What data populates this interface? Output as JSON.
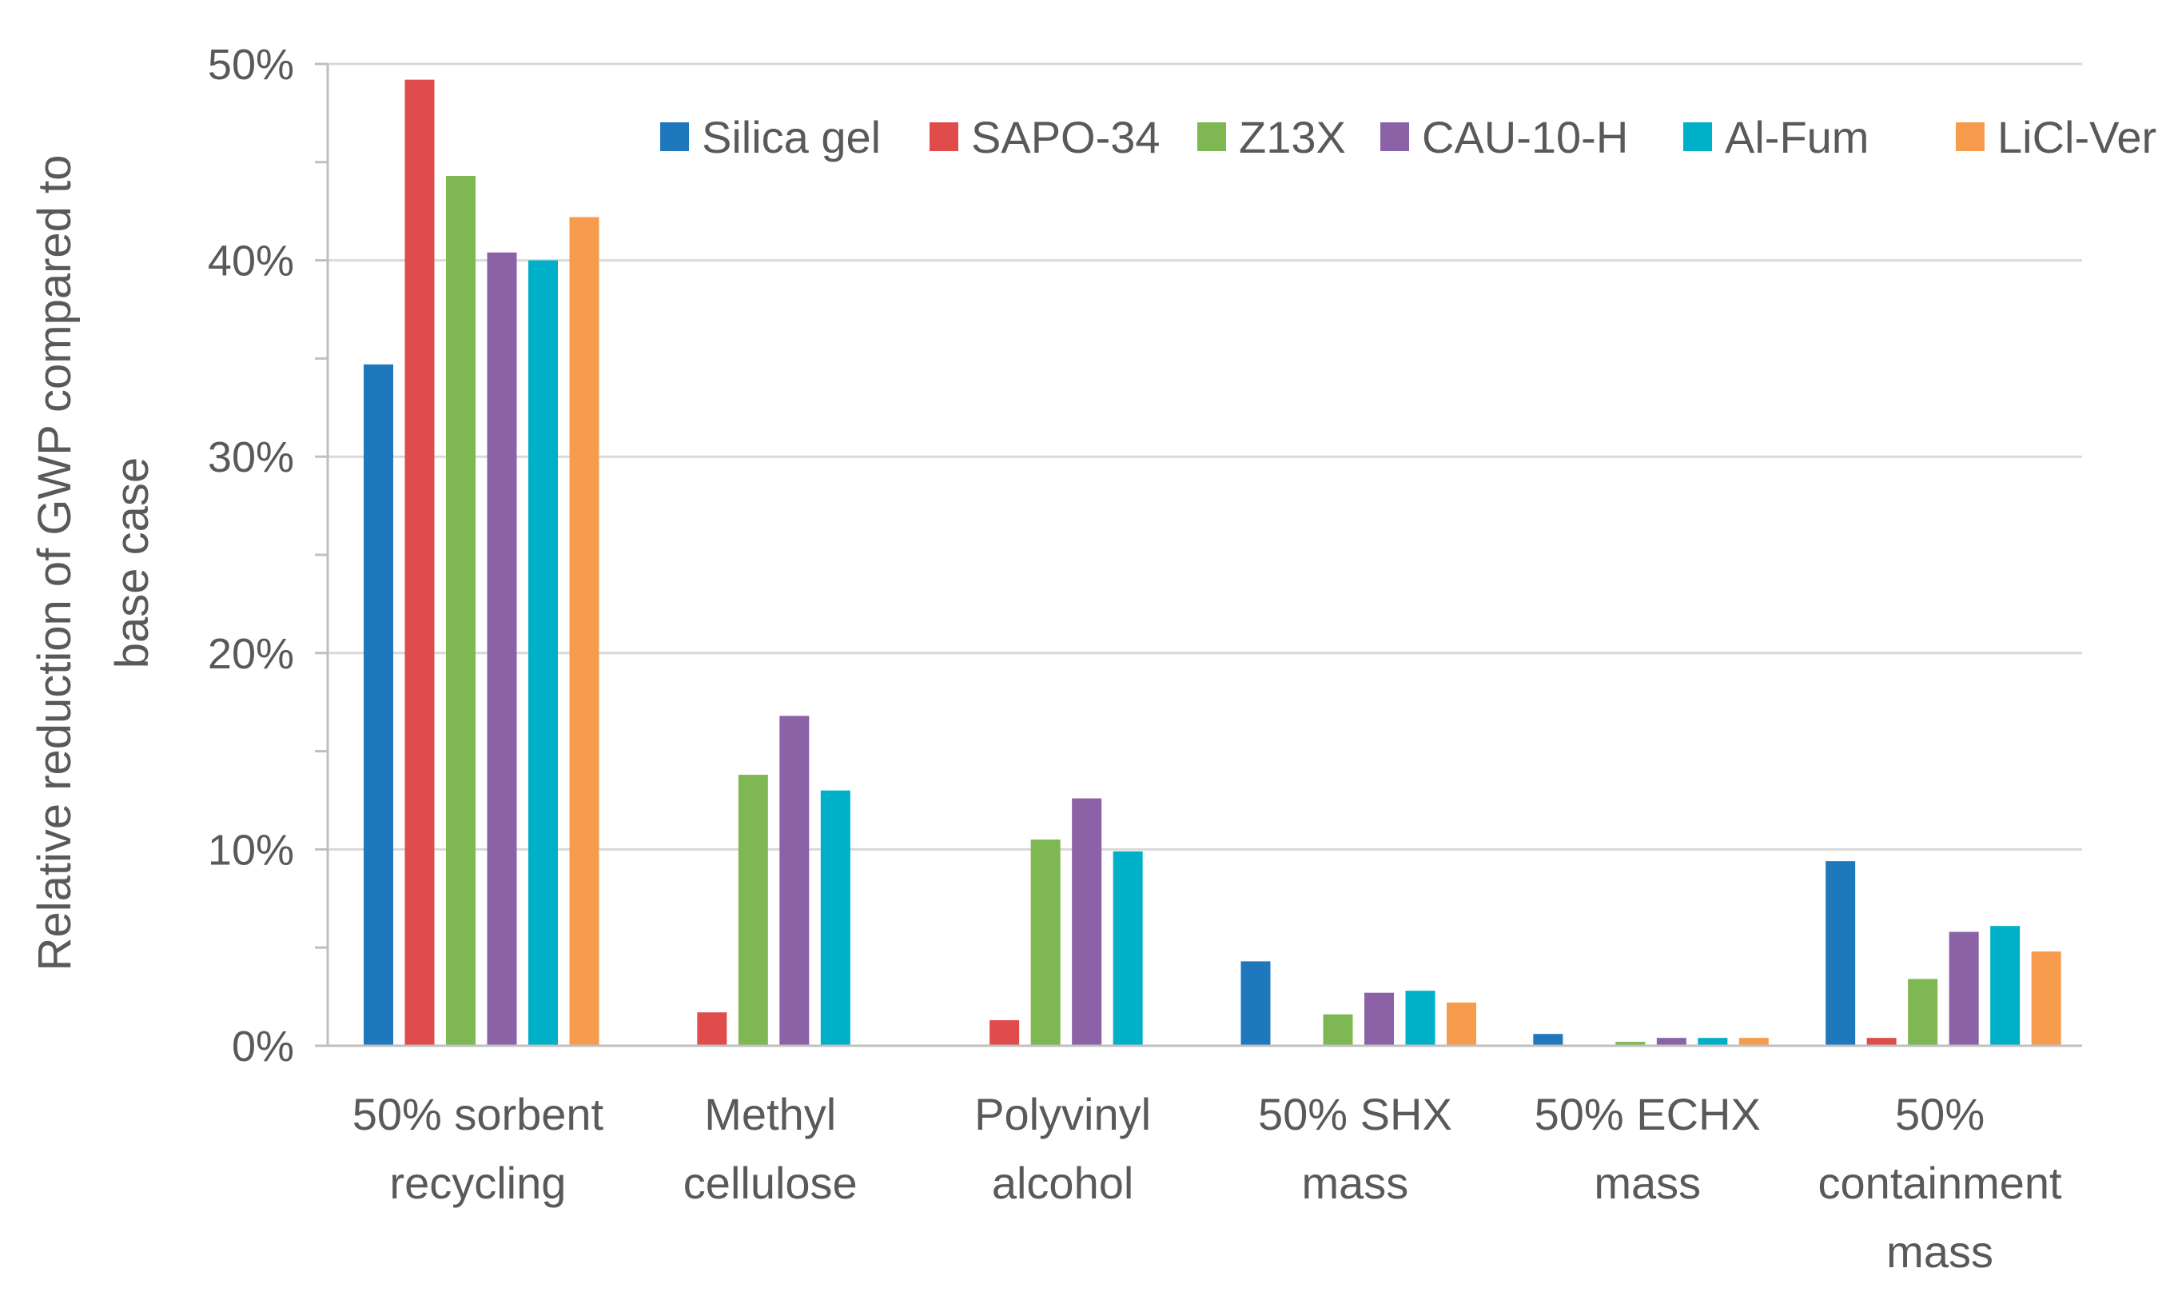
{
  "chart_data": {
    "type": "bar",
    "title": "",
    "xlabel": "",
    "ylabel": "Relative reduction of GWP compared to base case",
    "ylabel_lines": [
      "Relative reduction of GWP compared to",
      "base case"
    ],
    "ylim": [
      0,
      0.5
    ],
    "yticks": [
      0,
      0.1,
      0.2,
      0.3,
      0.4,
      0.5
    ],
    "ytick_labels": [
      "0%",
      "10%",
      "20%",
      "30%",
      "40%",
      "50%"
    ],
    "grid": true,
    "legend_position": "top-right",
    "categories": [
      "50% sorbent recycling",
      "Methyl cellulose",
      "Polyvinyl alcohol",
      "50% SHX mass",
      "50% ECHX mass",
      "50% containment mass"
    ],
    "category_lines": [
      [
        "50% sorbent",
        "recycling"
      ],
      [
        "Methyl",
        "cellulose"
      ],
      [
        "Polyvinyl",
        "alcohol"
      ],
      [
        "50% SHX",
        "mass"
      ],
      [
        "50% ECHX",
        "mass"
      ],
      [
        "50%",
        "containment",
        "mass"
      ]
    ],
    "series": [
      {
        "name": "Silica gel",
        "color": "#1F77BC",
        "values": [
          0.347,
          0.0,
          0.0,
          0.043,
          0.006,
          0.094
        ]
      },
      {
        "name": "SAPO-34",
        "color": "#E04B4B",
        "values": [
          0.492,
          0.017,
          0.013,
          0.0,
          0.0,
          0.004
        ]
      },
      {
        "name": "Z13X",
        "color": "#7FB853",
        "values": [
          0.443,
          0.138,
          0.105,
          0.016,
          0.002,
          0.034
        ]
      },
      {
        "name": "CAU-10-H",
        "color": "#8C62A6",
        "values": [
          0.404,
          0.168,
          0.126,
          0.027,
          0.004,
          0.058
        ]
      },
      {
        "name": "Al-Fum",
        "color": "#00AFC8",
        "values": [
          0.4,
          0.13,
          0.099,
          0.028,
          0.004,
          0.061
        ]
      },
      {
        "name": "LiCl-Ver",
        "color": "#F79B4C",
        "values": [
          0.422,
          0.0,
          0.0,
          0.022,
          0.004,
          0.048
        ]
      }
    ],
    "colors": {
      "grid": "#D9D9D9",
      "axis": "#BFBFBF",
      "text": "#595959"
    }
  }
}
